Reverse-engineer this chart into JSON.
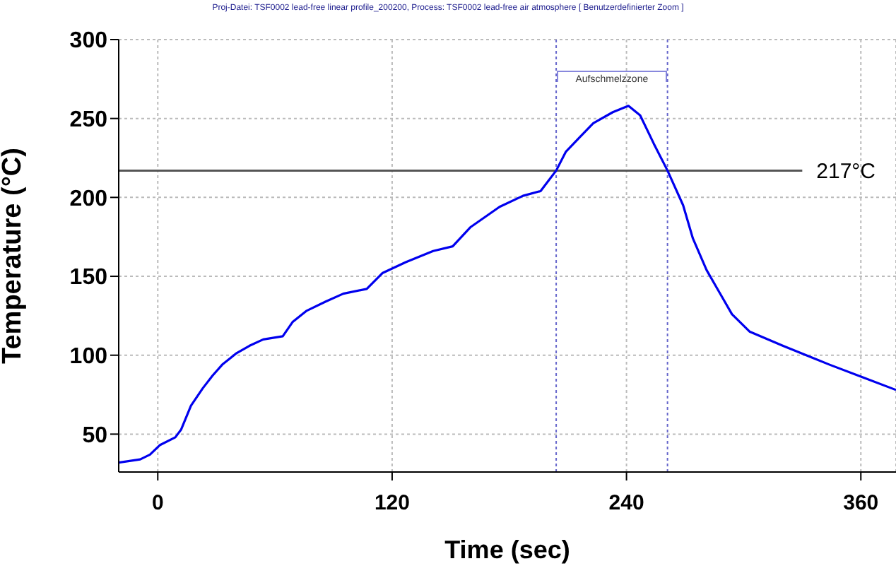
{
  "chart_data": {
    "type": "line",
    "title": "Proj-Datei: TSF0002 lead-free linear profile_200200, Process: TSF0002 lead-free air atmosphere [ Benutzerdefinierter Zoom ]",
    "xlabel": "Time (sec)",
    "ylabel": "Temperature (°C)",
    "x": [
      -20,
      -9,
      -4,
      1,
      9,
      12,
      17,
      23,
      28,
      33,
      40,
      47,
      54,
      64,
      69,
      76,
      86,
      95,
      107,
      115,
      127,
      141,
      151,
      160,
      175,
      187,
      196,
      204,
      209,
      216,
      223,
      233,
      241,
      247,
      254,
      261,
      269,
      274,
      281,
      294,
      303,
      320,
      344,
      361,
      378
    ],
    "series": [
      {
        "color": "#0000ee",
        "values": [
          32,
          34,
          37,
          43,
          48,
          53,
          68,
          79,
          87,
          94,
          101,
          106,
          110,
          112,
          121,
          128,
          134,
          139,
          142,
          152,
          159,
          166,
          169,
          181,
          194,
          201,
          204,
          217,
          229,
          238,
          247,
          254,
          258,
          252,
          234,
          217,
          195,
          174,
          154,
          126,
          115,
          106,
          94,
          86,
          78
        ]
      }
    ],
    "xlim": [
      -20,
      378
    ],
    "xticks": [
      0,
      120,
      240,
      360
    ],
    "ylim": [
      26,
      300
    ],
    "yticks": [
      50,
      100,
      150,
      200,
      250,
      300
    ],
    "grid": true,
    "marker": "none",
    "line_style": "solid",
    "ref_lines": [
      {
        "axis": "y",
        "value": 217,
        "label": "217°C",
        "color": "#555555"
      },
      {
        "axis": "x",
        "value": 204,
        "color": "#6666cc",
        "line_style": "dotted"
      },
      {
        "axis": "x",
        "value": 261,
        "color": "#6666cc",
        "line_style": "dotted"
      }
    ],
    "annotations": [
      "Aufschmelzzone"
    ]
  }
}
